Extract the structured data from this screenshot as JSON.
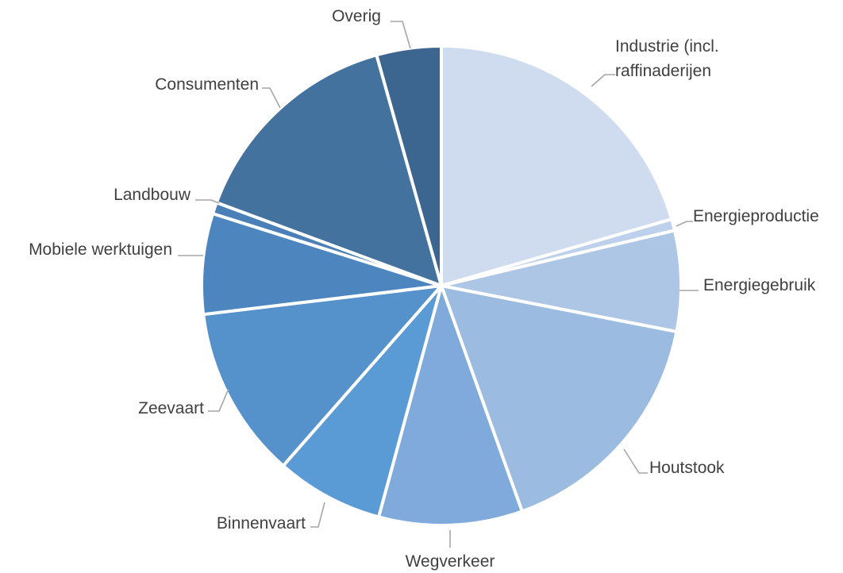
{
  "chart_data": {
    "type": "pie",
    "title": "",
    "start_angle_deg": 0,
    "direction": "clockwise",
    "slices": [
      {
        "label": "Industrie (incl. raffinaderijen",
        "value": 21.2,
        "color": "#cfdcef"
      },
      {
        "label": "Energieproductie",
        "value": 0.8,
        "color": "#bdd0ec"
      },
      {
        "label": "Energiegebruik",
        "value": 7.0,
        "color": "#aec6e6"
      },
      {
        "label": "Houtstook",
        "value": 17.0,
        "color": "#9cbbe1"
      },
      {
        "label": "Wegverkeer",
        "value": 10.0,
        "color": "#7faadb"
      },
      {
        "label": "Binnenvaart",
        "value": 7.5,
        "color": "#5b9bd5"
      },
      {
        "label": "Zeevaart",
        "value": 12.0,
        "color": "#5591ca"
      },
      {
        "label": "Mobiele werktuigen",
        "value": 7.0,
        "color": "#4d86bf"
      },
      {
        "label": "Landbouw",
        "value": 0.8,
        "color": "#4a80b7"
      },
      {
        "label": "Consumenten",
        "value": 15.5,
        "color": "#44729f"
      },
      {
        "label": "Overig",
        "value": 4.5,
        "color": "#3c6690"
      }
    ]
  }
}
